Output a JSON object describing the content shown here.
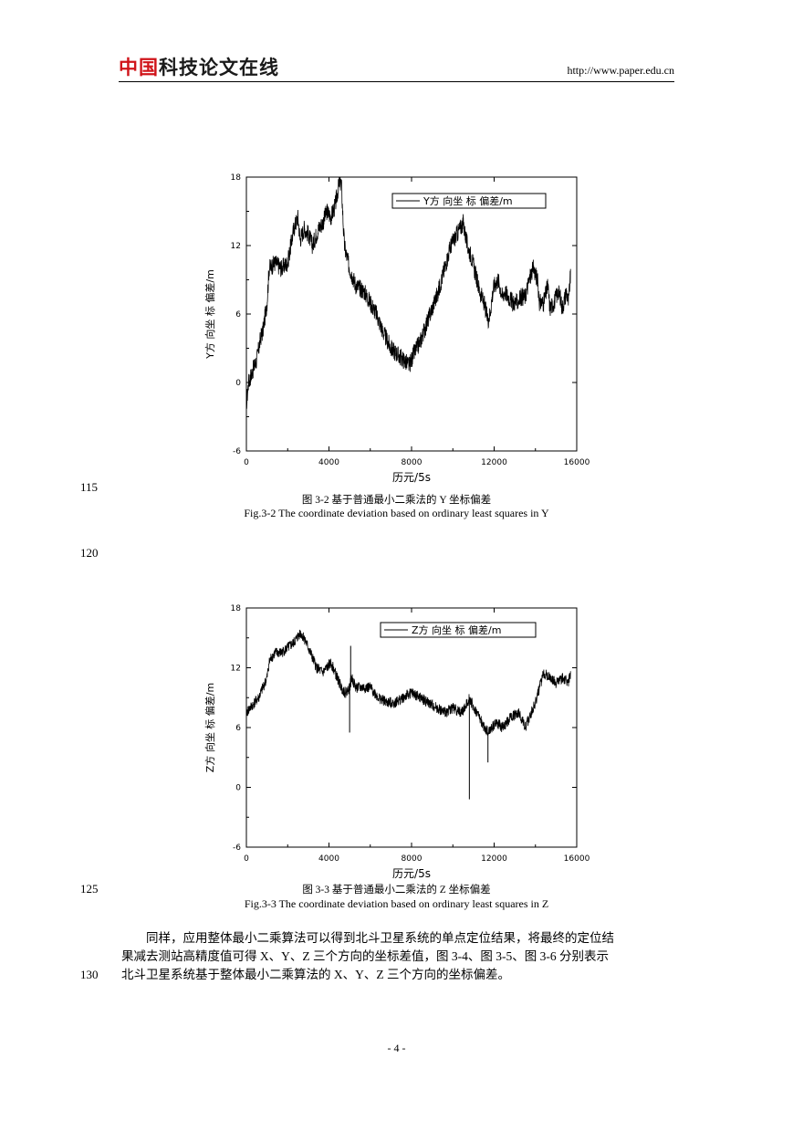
{
  "header": {
    "logo_part1": "中国",
    "logo_part2": "科技论文在线",
    "url": "http://www.paper.edu.cn"
  },
  "line_numbers": [
    "115",
    "120",
    "125",
    "130"
  ],
  "figures": [
    {
      "caption_cn": "图 3-2    基于普通最小二乘法的 Y 坐标偏差",
      "caption_en": "Fig.3-2    The coordinate deviation based on ordinary least squares in Y"
    },
    {
      "caption_cn": "图 3-3    基于普通最小二乘法的 Z 坐标偏差",
      "caption_en": "Fig.3-3    The coordinate deviation based on ordinary least squares in Z"
    }
  ],
  "chart_data": [
    {
      "type": "line",
      "xlabel": "历元/5s",
      "ylabel": "Y方 向坐 标 偏差/m",
      "legend": "Y方 向坐 标 偏差/m",
      "legend_position": "top-right",
      "xlim": [
        0,
        16000
      ],
      "ylim": [
        -6,
        18
      ],
      "xticks": [
        "0",
        "4000",
        "8000",
        "12000",
        "16000"
      ],
      "yticks": [
        "-6",
        "0",
        "6",
        "12",
        "18"
      ],
      "series": [
        {
          "x": [
            0,
            100,
            300,
            500,
            700,
            800,
            1000,
            1100,
            1400,
            1700,
            2000,
            2300,
            2500,
            2600,
            2800,
            3000,
            3200,
            3500,
            3700,
            3900,
            4100,
            4300,
            4400,
            4500,
            4600,
            4700,
            4750,
            4800,
            5000,
            5300,
            5700,
            6000,
            6300,
            6600,
            7000,
            7300,
            7600,
            7900,
            8100,
            8400,
            8700,
            9000,
            9300,
            9600,
            9900,
            10200,
            10500,
            10700,
            10900,
            11100,
            11300,
            11500,
            11700,
            11800,
            11900,
            12000,
            12200,
            12400,
            12500,
            12700,
            12900,
            13100,
            13300,
            13500,
            13700,
            13900,
            14100,
            14200,
            14400,
            14600,
            14700,
            14900,
            15100,
            15200,
            15300,
            15500,
            15600,
            15700
          ],
          "y": [
            -2,
            0,
            1,
            2,
            4,
            4.5,
            7,
            10,
            10.5,
            10,
            10.5,
            13.5,
            14.5,
            12.5,
            13.5,
            13,
            12,
            13.5,
            14,
            15,
            14.5,
            15.5,
            16.5,
            17.5,
            17.5,
            13.5,
            12,
            11.5,
            10,
            8.5,
            8,
            7,
            6,
            4.5,
            3,
            2.5,
            2,
            1.5,
            2.5,
            3.5,
            5,
            6.5,
            8,
            10,
            12,
            13,
            14,
            12,
            11,
            9.5,
            8,
            7,
            5.5,
            6,
            7.5,
            8.5,
            9,
            7.5,
            8,
            7.5,
            7,
            7,
            7.5,
            7.5,
            9,
            10,
            9,
            7,
            7,
            8.5,
            6.5,
            7,
            8,
            7.5,
            6.5,
            8,
            7,
            9.5
          ]
        }
      ]
    },
    {
      "type": "line",
      "xlabel": "历元/5s",
      "ylabel": "Z方 向坐 标 偏差/m",
      "legend": "Z方 向坐 标 偏差/m",
      "legend_position": "top-right",
      "xlim": [
        0,
        16000
      ],
      "ylim": [
        -6,
        18
      ],
      "xticks": [
        "0",
        "4000",
        "8000",
        "12000",
        "16000"
      ],
      "yticks": [
        "-6",
        "0",
        "6",
        "12",
        "18"
      ],
      "series": [
        {
          "x": [
            0,
            200,
            400,
            600,
            800,
            1000,
            1100,
            1200,
            1400,
            1700,
            2000,
            2300,
            2600,
            2800,
            3000,
            3200,
            3400,
            3700,
            3900,
            4100,
            4400,
            4600,
            4800,
            5000,
            5100,
            5300,
            5600,
            6000,
            6400,
            6800,
            7200,
            7600,
            8000,
            8400,
            8800,
            9200,
            9600,
            10000,
            10400,
            10600,
            10800,
            11000,
            11300,
            11500,
            11700,
            11900,
            12100,
            12400,
            12800,
            13200,
            13500,
            13800,
            14000,
            14200,
            14400,
            14700,
            15000,
            15300,
            15600,
            15700
          ],
          "y": [
            7.5,
            8,
            8.5,
            9,
            10,
            11,
            12.5,
            13,
            13.5,
            13.5,
            14,
            14.5,
            15.5,
            15,
            14,
            13,
            12,
            11.5,
            12,
            12.5,
            11,
            10,
            9.5,
            10,
            11,
            10,
            10,
            10,
            9,
            8.5,
            8.5,
            9,
            9.5,
            9,
            8.5,
            8,
            7.5,
            8,
            7.5,
            8,
            9,
            8,
            7,
            6,
            5.5,
            6,
            6.5,
            6,
            7,
            7.5,
            6,
            7.5,
            8.5,
            10,
            11.5,
            11,
            10.5,
            11,
            10.5,
            11.5
          ]
        }
      ],
      "spikes": [
        {
          "x": 5000,
          "y": 5.5
        },
        {
          "x": 5050,
          "y": 14.2
        },
        {
          "x": 10800,
          "y": -1.2
        },
        {
          "x": 11700,
          "y": 2.5
        }
      ]
    }
  ],
  "paragraph": {
    "line1": "同样，应用整体最小二乘算法可以得到北斗卫星系统的单点定位结果，将最终的定位结",
    "line2": "果减去测站高精度值可得 X、Y、Z 三个方向的坐标差值，图 3-4、图 3-5、图 3-6 分别表示",
    "line3": "北斗卫星系统基于整体最小二乘算法的 X、Y、Z 三个方向的坐标偏差。"
  },
  "page_number": "- 4 -"
}
